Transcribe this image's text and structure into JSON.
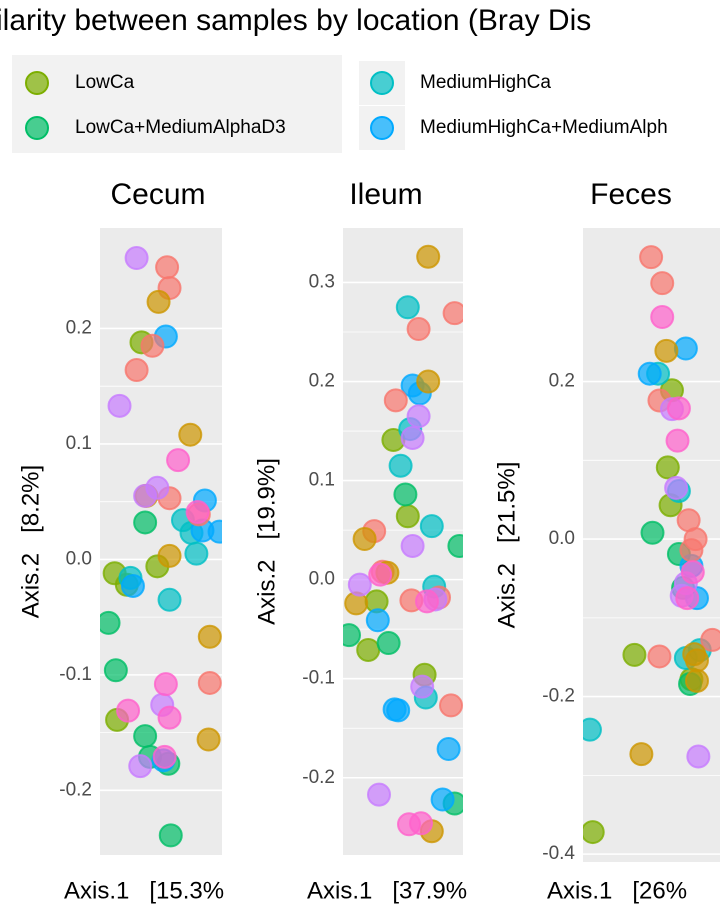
{
  "chart_data": {
    "type": "scatter",
    "title": "ilarity between samples by location (Bray Dis",
    "series": [
      {
        "name": "LowCa",
        "color": "#7CAE00"
      },
      {
        "name": "MediumHighCa",
        "color": "#00BFC4"
      },
      {
        "name": "LowCa+MediumAlphaD3",
        "color": "#00BE67"
      },
      {
        "name": "MediumHighCa+MediumAlph",
        "color": "#00A9FF"
      },
      {
        "color": "#F8766D"
      },
      {
        "color": "#CD9600"
      },
      {
        "color": "#C77CFF"
      },
      {
        "color": "#FF61CC"
      }
    ],
    "facets": [
      {
        "title": "Cecum",
        "xlabel": "Axis.1   [15.3%",
        "ylabel": "Axis.2   [8.2%]",
        "xlim": [
          0,
          1
        ],
        "ylim": [
          -0.256,
          0.287
        ],
        "yticks": [
          0.2,
          0.1,
          {
            "value": 0,
            "label": "0.0"
          },
          -0.1,
          -0.2
        ],
        "series": [
          {
            "x": [
              0.34,
              0.47,
              0.12,
              0.22,
              0.14
            ],
            "y": [
              0.188,
              -0.006,
              -0.012,
              -0.022,
              -0.139
            ]
          },
          {
            "x": [
              0.68,
              0.75,
              0.79,
              0.57,
              0.25
            ],
            "y": [
              0.034,
              0.023,
              0.005,
              -0.035,
              -0.016
            ]
          },
          {
            "x": [
              0.37,
              0.07,
              0.13,
              0.37,
              0.41,
              0.56,
              0.58
            ],
            "y": [
              0.032,
              -0.055,
              -0.096,
              -0.153,
              -0.171,
              -0.177,
              -0.239
            ]
          },
          {
            "x": [
              0.54,
              0.86,
              0.84,
              0.98,
              0.27,
              0.52
            ],
            "y": [
              0.193,
              0.051,
              0.025,
              0.024,
              -0.023,
              -0.174
            ]
          },
          {
            "x": [
              0.55,
              0.57,
              0.3,
              0.43,
              0.57,
              0.81,
              0.9
            ],
            "y": [
              0.253,
              0.235,
              0.164,
              0.185,
              0.053,
              0.039,
              -0.107
            ]
          },
          {
            "x": [
              0.48,
              0.74,
              0.38,
              0.57,
              0.9,
              0.89
            ],
            "y": [
              0.223,
              0.108,
              0.055,
              0.003,
              -0.067,
              -0.156
            ]
          },
          {
            "x": [
              0.3,
              0.16,
              0.47,
              0.37,
              0.51,
              0.33
            ],
            "y": [
              0.261,
              0.133,
              0.062,
              0.055,
              -0.126,
              -0.179
            ]
          },
          {
            "x": [
              0.64,
              0.23,
              0.54,
              0.57,
              0.53,
              0.8
            ],
            "y": [
              0.086,
              -0.131,
              -0.108,
              -0.137,
              -0.171,
              0.041
            ]
          }
        ]
      },
      {
        "title": "Ileum",
        "xlabel": "Axis.1   [37.9%",
        "ylabel": "Axis.2   [19.9%]",
        "xlim": [
          0,
          1
        ],
        "ylim": [
          -0.278,
          0.355
        ],
        "yticks": [
          0.3,
          0.2,
          0.1,
          {
            "value": 0,
            "label": "0.0"
          },
          -0.1,
          -0.2
        ],
        "series": [
          {
            "x": [
              0.42,
              0.54,
              0.21,
              0.28,
              0.68
            ],
            "y": [
              0.141,
              0.064,
              -0.071,
              -0.022,
              -0.096
            ]
          },
          {
            "x": [
              0.54,
              0.56,
              0.48,
              0.74,
              0.76,
              0.69
            ],
            "y": [
              0.275,
              0.152,
              0.115,
              0.054,
              -0.007,
              -0.119
            ]
          },
          {
            "x": [
              0.52,
              0.05,
              0.38,
              0.97,
              0.93
            ],
            "y": [
              0.086,
              -0.056,
              -0.064,
              0.034,
              -0.226
            ]
          },
          {
            "x": [
              0.58,
              0.64,
              0.29,
              0.43,
              0.46,
              0.88,
              0.83
            ],
            "y": [
              0.196,
              0.188,
              -0.041,
              -0.131,
              -0.132,
              -0.171,
              -0.222
            ]
          },
          {
            "x": [
              0.93,
              0.63,
              0.44,
              0.26,
              0.33,
              0.57,
              0.8,
              0.9
            ],
            "y": [
              0.269,
              0.253,
              0.181,
              0.049,
              0.008,
              -0.021,
              -0.018,
              -0.127
            ]
          },
          {
            "x": [
              0.71,
              0.71,
              0.18,
              0.37,
              0.11,
              0.74
            ],
            "y": [
              0.326,
              0.2,
              0.041,
              0.007,
              -0.024,
              -0.254
            ]
          },
          {
            "x": [
              0.63,
              0.58,
              0.58,
              0.14,
              0.3,
              0.66,
              0.77
            ],
            "y": [
              0.165,
              0.143,
              0.034,
              -0.005,
              -0.217,
              -0.108,
              -0.02
            ]
          },
          {
            "x": [
              0.55,
              0.65,
              0.7,
              0.31
            ],
            "y": [
              -0.247,
              -0.246,
              -0.022,
              0.005
            ]
          }
        ]
      },
      {
        "title": "Feces",
        "xlabel": "Axis.1   [26%",
        "ylabel": "Axis.2   [21.5%]",
        "xlim": [
          0,
          1
        ],
        "ylim": [
          -0.41,
          0.395
        ],
        "yticks": [
          0.2,
          {
            "value": 0,
            "label": "0.0"
          },
          -0.2,
          -0.4
        ],
        "series": [
          {
            "x": [
              0.64,
              0.61,
              0.63,
              0.37,
              0.78,
              0.07
            ],
            "y": [
              0.189,
              0.091,
              0.043,
              -0.147,
              -0.178,
              -0.372
            ]
          },
          {
            "x": [
              0.05,
              0.54,
              0.69,
              0.84,
              0.74
            ],
            "y": [
              -0.242,
              0.21,
              0.061,
              -0.141,
              -0.151
            ]
          },
          {
            "x": [
              0.5,
              0.69,
              0.72,
              0.77
            ],
            "y": [
              0.008,
              -0.019,
              -0.062,
              -0.184
            ]
          },
          {
            "x": [
              0.74,
              0.48,
              0.78,
              0.82
            ],
            "y": [
              0.242,
              0.21,
              -0.034,
              -0.075
            ]
          },
          {
            "x": [
              0.49,
              0.57,
              0.55,
              0.76,
              0.81,
              0.78,
              0.93,
              0.55
            ],
            "y": [
              0.358,
              0.325,
              0.176,
              0.024,
              0,
              -0.014,
              -0.128,
              -0.149
            ]
          },
          {
            "x": [
              0.6,
              0.42,
              0.8,
              0.82,
              0.82
            ],
            "y": [
              0.239,
              -0.273,
              -0.146,
              -0.154,
              -0.18
            ]
          },
          {
            "x": [
              0.64,
              0.67,
              0.71,
              0.83,
              0.74
            ],
            "y": [
              0.165,
              0.065,
              -0.072,
              -0.276,
              -0.056
            ]
          },
          {
            "x": [
              0.57,
              0.69,
              0.68,
              0.75,
              0.79
            ],
            "y": [
              0.282,
              0.166,
              0.125,
              -0.075,
              -0.042
            ]
          }
        ]
      }
    ]
  }
}
